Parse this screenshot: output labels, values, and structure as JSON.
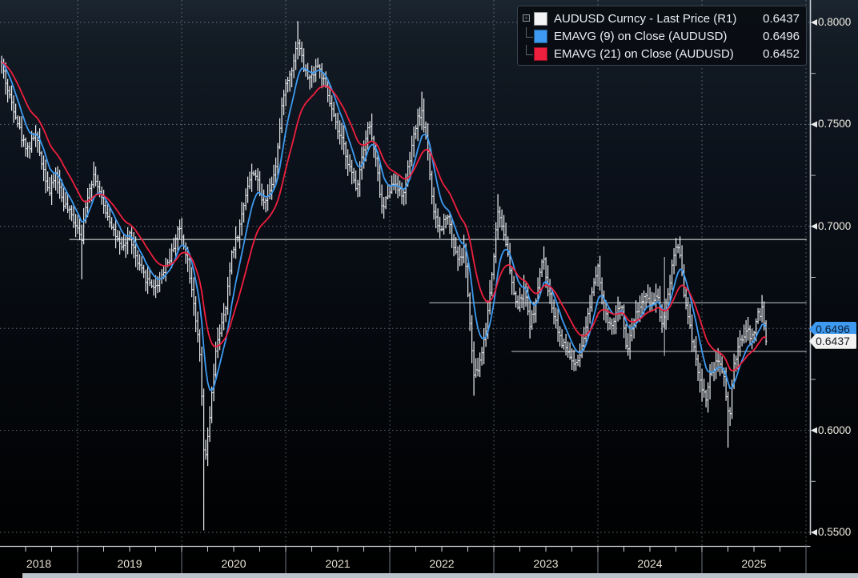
{
  "legend": {
    "expander_glyph": "-",
    "series": [
      {
        "label": "AUDUSD Curncy - Last Price (R1)",
        "value": "0.6437",
        "color": "#f2f4f6"
      },
      {
        "label": "EMAVG (9) on Close (AUDUSD)",
        "value": "0.6496",
        "color": "#3d9af0"
      },
      {
        "label": "EMAVG (21) on Close (AUDUSD)",
        "value": "0.6452",
        "color": "#ef1f3e"
      }
    ]
  },
  "axis_y": {
    "side": "right",
    "labels": [
      {
        "text": "0.8000",
        "value": 0.8
      },
      {
        "text": "0.7500",
        "value": 0.75
      },
      {
        "text": "0.7000",
        "value": 0.7
      },
      {
        "text": "0.6000",
        "value": 0.6
      },
      {
        "text": "0.5500",
        "value": 0.55
      }
    ],
    "grid_values": [
      0.8,
      0.75,
      0.7,
      0.65,
      0.6,
      0.55
    ],
    "minor_tick_values": [
      0.775,
      0.725,
      0.675,
      0.625,
      0.575
    ],
    "badges": [
      {
        "text": "0.6496",
        "value": 0.6496,
        "bg": "#3d9af0",
        "fg": "#0a1c31"
      },
      {
        "text": "0.6437",
        "value": 0.6437,
        "bg": "#f2f2f2",
        "fg": "#15191d"
      }
    ]
  },
  "axis_x": {
    "years": [
      {
        "label": "2018",
        "start": 2018,
        "end": 2019
      },
      {
        "label": "2019",
        "start": 2019,
        "end": 2020
      },
      {
        "label": "2020",
        "start": 2020,
        "end": 2021
      },
      {
        "label": "2021",
        "start": 2021,
        "end": 2022
      },
      {
        "label": "2022",
        "start": 2022,
        "end": 2023
      },
      {
        "label": "2023",
        "start": 2023,
        "end": 2024
      },
      {
        "label": "2024",
        "start": 2024,
        "end": 2025
      },
      {
        "label": "2025",
        "start": 2025,
        "end": 2026
      }
    ]
  },
  "chart_data": {
    "type": "bar",
    "subtype": "ohlc-bars-with-ema-overlays",
    "symbol": "AUDUSD Curncy",
    "frequency": "weekly",
    "x_range_years": [
      2018.27,
      2025.62
    ],
    "y_range": [
      0.549,
      0.811
    ],
    "last_price": 0.6437,
    "series": [
      {
        "name": "AUDUSD Curncy - Last Price (R1)",
        "type": "ohlc-bar",
        "color": "#eef1f4",
        "last": 0.6437
      },
      {
        "name": "EMAVG (9) on Close (AUDUSD)",
        "type": "ema",
        "period": 9,
        "color": "#3d9af0",
        "last": 0.6496
      },
      {
        "name": "EMAVG (21) on Close (AUDUSD)",
        "type": "ema",
        "period": 21,
        "color": "#ef1f3e",
        "last": 0.6452
      }
    ],
    "close_anchors": [
      [
        2018.27,
        0.78
      ],
      [
        2018.33,
        0.766
      ],
      [
        2018.4,
        0.756
      ],
      [
        2018.47,
        0.742
      ],
      [
        2018.53,
        0.738
      ],
      [
        2018.59,
        0.746
      ],
      [
        2018.66,
        0.731
      ],
      [
        2018.73,
        0.716
      ],
      [
        2018.79,
        0.726
      ],
      [
        2018.86,
        0.712
      ],
      [
        2018.93,
        0.706
      ],
      [
        2019.0,
        0.7
      ],
      [
        2019.04,
        0.695
      ],
      [
        2019.1,
        0.717
      ],
      [
        2019.16,
        0.726
      ],
      [
        2019.24,
        0.711
      ],
      [
        2019.32,
        0.702
      ],
      [
        2019.42,
        0.688
      ],
      [
        2019.5,
        0.696
      ],
      [
        2019.58,
        0.681
      ],
      [
        2019.66,
        0.674
      ],
      [
        2019.75,
        0.67
      ],
      [
        2019.82,
        0.678
      ],
      [
        2019.9,
        0.686
      ],
      [
        2019.97,
        0.7
      ],
      [
        2020.05,
        0.686
      ],
      [
        2020.12,
        0.662
      ],
      [
        2020.18,
        0.633
      ],
      [
        2020.22,
        0.58
      ],
      [
        2020.28,
        0.612
      ],
      [
        2020.34,
        0.644
      ],
      [
        2020.42,
        0.658
      ],
      [
        2020.48,
        0.687
      ],
      [
        2020.55,
        0.698
      ],
      [
        2020.63,
        0.72
      ],
      [
        2020.7,
        0.728
      ],
      [
        2020.77,
        0.712
      ],
      [
        2020.84,
        0.716
      ],
      [
        2020.91,
        0.732
      ],
      [
        2020.98,
        0.766
      ],
      [
        2021.05,
        0.776
      ],
      [
        2021.12,
        0.792
      ],
      [
        2021.18,
        0.776
      ],
      [
        2021.24,
        0.772
      ],
      [
        2021.3,
        0.78
      ],
      [
        2021.36,
        0.772
      ],
      [
        2021.42,
        0.761
      ],
      [
        2021.49,
        0.748
      ],
      [
        2021.56,
        0.739
      ],
      [
        2021.63,
        0.726
      ],
      [
        2021.68,
        0.718
      ],
      [
        2021.74,
        0.737
      ],
      [
        2021.8,
        0.751
      ],
      [
        2021.87,
        0.731
      ],
      [
        2021.93,
        0.707
      ],
      [
        2021.99,
        0.718
      ],
      [
        2022.06,
        0.722
      ],
      [
        2022.12,
        0.714
      ],
      [
        2022.18,
        0.729
      ],
      [
        2022.25,
        0.749
      ],
      [
        2022.3,
        0.757
      ],
      [
        2022.36,
        0.741
      ],
      [
        2022.42,
        0.706
      ],
      [
        2022.49,
        0.697
      ],
      [
        2022.55,
        0.708
      ],
      [
        2022.61,
        0.691
      ],
      [
        2022.67,
        0.683
      ],
      [
        2022.72,
        0.69
      ],
      [
        2022.77,
        0.651
      ],
      [
        2022.81,
        0.626
      ],
      [
        2022.86,
        0.632
      ],
      [
        2022.92,
        0.648
      ],
      [
        2022.98,
        0.676
      ],
      [
        2023.04,
        0.708
      ],
      [
        2023.11,
        0.695
      ],
      [
        2023.17,
        0.672
      ],
      [
        2023.23,
        0.66
      ],
      [
        2023.29,
        0.669
      ],
      [
        2023.35,
        0.652
      ],
      [
        2023.41,
        0.664
      ],
      [
        2023.47,
        0.686
      ],
      [
        2023.53,
        0.667
      ],
      [
        2023.59,
        0.655
      ],
      [
        2023.65,
        0.643
      ],
      [
        2023.71,
        0.639
      ],
      [
        2023.77,
        0.631
      ],
      [
        2023.83,
        0.635
      ],
      [
        2023.89,
        0.652
      ],
      [
        2023.95,
        0.67
      ],
      [
        2024.0,
        0.682
      ],
      [
        2024.06,
        0.658
      ],
      [
        2024.12,
        0.65
      ],
      [
        2024.18,
        0.657
      ],
      [
        2024.23,
        0.662
      ],
      [
        2024.28,
        0.638
      ],
      [
        2024.34,
        0.654
      ],
      [
        2024.4,
        0.661
      ],
      [
        2024.46,
        0.665
      ],
      [
        2024.52,
        0.662
      ],
      [
        2024.57,
        0.668
      ],
      [
        2024.61,
        0.652
      ],
      [
        2024.66,
        0.661
      ],
      [
        2024.71,
        0.68
      ],
      [
        2024.75,
        0.691
      ],
      [
        2024.79,
        0.687
      ],
      [
        2024.84,
        0.662
      ],
      [
        2024.89,
        0.649
      ],
      [
        2024.94,
        0.637
      ],
      [
        2024.99,
        0.621
      ],
      [
        2025.04,
        0.616
      ],
      [
        2025.09,
        0.629
      ],
      [
        2025.15,
        0.633
      ],
      [
        2025.21,
        0.628
      ],
      [
        2025.26,
        0.604
      ],
      [
        2025.31,
        0.632
      ],
      [
        2025.37,
        0.644
      ],
      [
        2025.43,
        0.649
      ],
      [
        2025.48,
        0.645
      ],
      [
        2025.53,
        0.656
      ],
      [
        2025.58,
        0.659
      ],
      [
        2025.62,
        0.6437
      ]
    ],
    "spikes": [
      {
        "t": 2019.04,
        "low": 0.674
      },
      {
        "t": 2020.22,
        "low": 0.551
      },
      {
        "t": 2021.12,
        "high": 0.8007
      },
      {
        "t": 2022.3,
        "high": 0.766
      },
      {
        "t": 2022.81,
        "low": 0.617
      },
      {
        "t": 2023.04,
        "high": 0.7158
      },
      {
        "t": 2024.75,
        "high": 0.6942
      },
      {
        "t": 2025.26,
        "low": 0.5915
      }
    ],
    "annotations": {
      "hlines": [
        {
          "value": 0.6936,
          "from_t": 2018.92,
          "color": "#eef1f3"
        },
        {
          "value": 0.6626,
          "from_t": 2022.38,
          "color": "#c6ccd1"
        },
        {
          "value": 0.6387,
          "from_t": 2023.17,
          "color": "#c6ccd1"
        }
      ],
      "vlines": [
        {
          "t": 2024.64,
          "from": 0.685,
          "to": 0.6365,
          "color": "#c6ccd1"
        }
      ]
    },
    "noise_seed": 42,
    "grid": "dotted",
    "legend_position": "top-right"
  },
  "colors": {
    "background_top": "#1b2530",
    "background_bottom": "#000000",
    "bar": "#eef1f4",
    "ema9": "#3d9af0",
    "ema21": "#ef1f3e",
    "grid": "#8f9aa5",
    "axis_line": "#c9ced4",
    "tick_text": "#f0ece1"
  }
}
